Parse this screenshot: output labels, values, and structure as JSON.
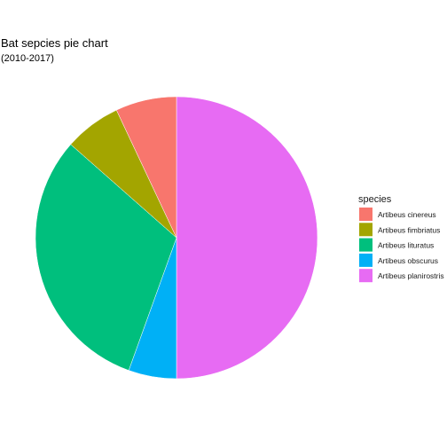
{
  "chart_data": {
    "type": "pie",
    "title": "Bat sepcies pie chart",
    "subtitle": "(2010-2017)",
    "legend_title": "species",
    "legend_position": "right",
    "direction": "clockwise",
    "start": "top",
    "categories": [
      "Artibeus cinereus",
      "Artibeus fimbriatus",
      "Artibeus lituratus",
      "Artibeus obscurus",
      "Artibeus planirostris"
    ],
    "values": [
      7,
      6.5,
      31,
      5.5,
      50
    ],
    "colors": [
      "#F8766D",
      "#A3A500",
      "#00BF7D",
      "#00B0F6",
      "#E76BF3"
    ],
    "draw_order": [
      "Artibeus planirostris",
      "Artibeus obscurus",
      "Artibeus lituratus",
      "Artibeus fimbriatus",
      "Artibeus cinereus"
    ]
  }
}
